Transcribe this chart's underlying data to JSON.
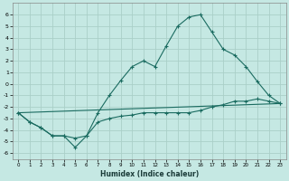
{
  "xlabel": "Humidex (Indice chaleur)",
  "background_color": "#c5e8e3",
  "grid_color": "#aacfc8",
  "line_color": "#1a6b60",
  "xlim": [
    -0.5,
    23.5
  ],
  "ylim": [
    -6.5,
    7.0
  ],
  "xticks": [
    0,
    1,
    2,
    3,
    4,
    5,
    6,
    7,
    8,
    9,
    10,
    11,
    12,
    13,
    14,
    15,
    16,
    17,
    18,
    19,
    20,
    21,
    22,
    23
  ],
  "yticks": [
    -6,
    -5,
    -4,
    -3,
    -2,
    -1,
    0,
    1,
    2,
    3,
    4,
    5,
    6
  ],
  "line1_x": [
    0,
    1,
    2,
    3,
    4,
    5,
    6,
    7,
    8,
    9,
    10,
    11,
    12,
    13,
    14,
    15,
    16,
    17,
    18,
    19,
    20,
    21,
    22,
    23
  ],
  "line1_y": [
    -2.5,
    -3.3,
    -3.8,
    -4.5,
    -4.5,
    -5.5,
    -4.5,
    -2.5,
    -1.0,
    0.3,
    1.5,
    2.0,
    1.5,
    3.3,
    5.0,
    5.8,
    6.0,
    4.5,
    3.0,
    2.5,
    1.5,
    0.2,
    -1.0,
    -1.7
  ],
  "line2_x": [
    0,
    1,
    2,
    3,
    4,
    5,
    6,
    7,
    8,
    9,
    10,
    11,
    12,
    13,
    14,
    15,
    16,
    17,
    18,
    19,
    20,
    21,
    22,
    23
  ],
  "line2_y": [
    -2.5,
    -3.3,
    -3.8,
    -4.5,
    -4.5,
    -4.7,
    -4.5,
    -3.3,
    -3.0,
    -2.8,
    -2.7,
    -2.5,
    -2.5,
    -2.5,
    -2.5,
    -2.5,
    -2.3,
    -2.0,
    -1.8,
    -1.5,
    -1.5,
    -1.3,
    -1.5,
    -1.7
  ],
  "line3_x": [
    0,
    23
  ],
  "line3_y": [
    -2.5,
    -1.7
  ]
}
